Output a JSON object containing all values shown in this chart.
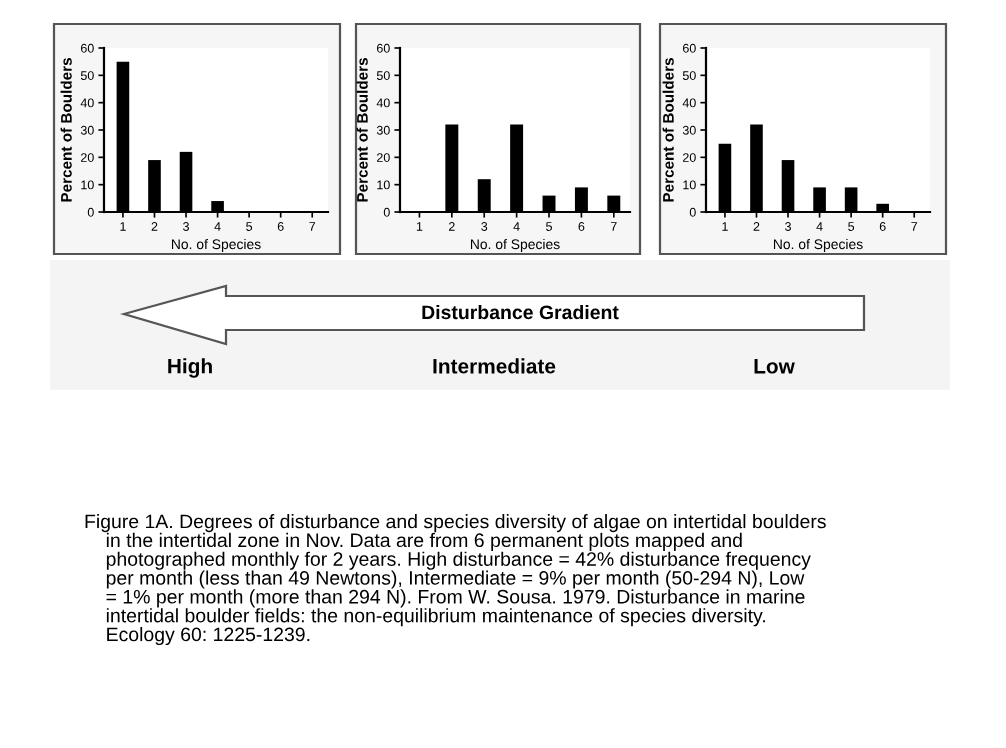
{
  "chart_data": [
    {
      "type": "bar",
      "categories": [
        "1",
        "2",
        "3",
        "4",
        "5",
        "6",
        "7"
      ],
      "values": [
        55,
        19,
        22,
        4,
        null,
        null,
        null
      ],
      "color": "#000000",
      "ylim": [
        0,
        60
      ],
      "yticks": [
        0,
        10,
        20,
        30,
        40,
        50,
        60
      ],
      "xlabel": "No. of Species",
      "ylabel": "Percent of Boulders",
      "grid": false,
      "legend": false
    },
    {
      "type": "bar",
      "categories": [
        "1",
        "2",
        "3",
        "4",
        "5",
        "6",
        "7"
      ],
      "values": [
        null,
        32,
        12,
        32,
        6,
        9,
        6
      ],
      "color": "#000000",
      "ylim": [
        0,
        60
      ],
      "yticks": [
        0,
        10,
        20,
        30,
        40,
        50,
        60
      ],
      "xlabel": "No. of Species",
      "ylabel": "Percent of Boulders",
      "grid": false,
      "legend": false
    },
    {
      "type": "bar",
      "categories": [
        "1",
        "2",
        "3",
        "4",
        "5",
        "6",
        "7"
      ],
      "values": [
        25,
        32,
        19,
        9,
        9,
        3,
        null
      ],
      "color": "#000000",
      "ylim": [
        0,
        60
      ],
      "yticks": [
        0,
        10,
        20,
        30,
        40,
        50,
        60
      ],
      "xlabel": "No. of Species",
      "ylabel": "Percent of Boulders",
      "grid": false,
      "legend": false
    },
    {
      "type": "other",
      "title": "Disturbance Gradient",
      "annotations": [
        "High",
        "Intermediate",
        "Low",
        "Figure 1A. Degrees of disturbance and species diversity of algae on intertidal boulders\n    in the intertidal zone in Nov. Data are from 6 permanent plots mapped and\n    photographed monthly for 2 years. High disturbance = 42% disturbance frequency\n    per month (less than 49 Newtons), Intermediate = 9% per month (50-294 N), Low\n    = 1% per month (more than 294 N). From W. Sousa. 1979. Disturbance in marine\n    intertidal boulder fields: the non-equilibrium maintenance of species diversity.\n    Ecology 60: 1225-1239."
      ]
    }
  ]
}
